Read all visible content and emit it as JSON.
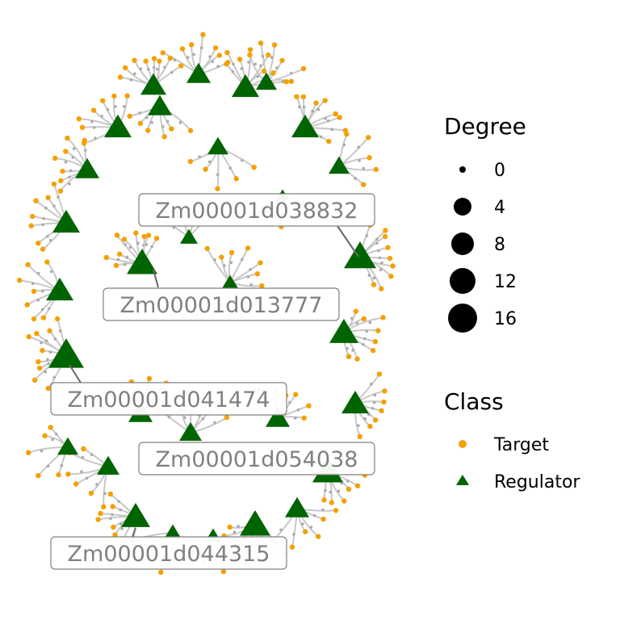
{
  "colors": {
    "target": "#F5A000",
    "regulator": "#006400",
    "edge": "#C8C8C8",
    "leader": "#666666",
    "label_text": "#808080"
  },
  "legend": {
    "degree": {
      "title": "Degree",
      "items": [
        "0",
        "4",
        "8",
        "12",
        "16"
      ]
    },
    "class": {
      "title": "Class",
      "items": [
        {
          "label": "Target",
          "shape": "circle",
          "color": "#F5A000"
        },
        {
          "label": "Regulator",
          "shape": "triangle",
          "color": "#006400"
        }
      ]
    }
  },
  "highlighted_labels": [
    "Zm00001d038832",
    "Zm00001d013777",
    "Zm00001d041474",
    "Zm00001d054038",
    "Zm00001d044315"
  ]
}
